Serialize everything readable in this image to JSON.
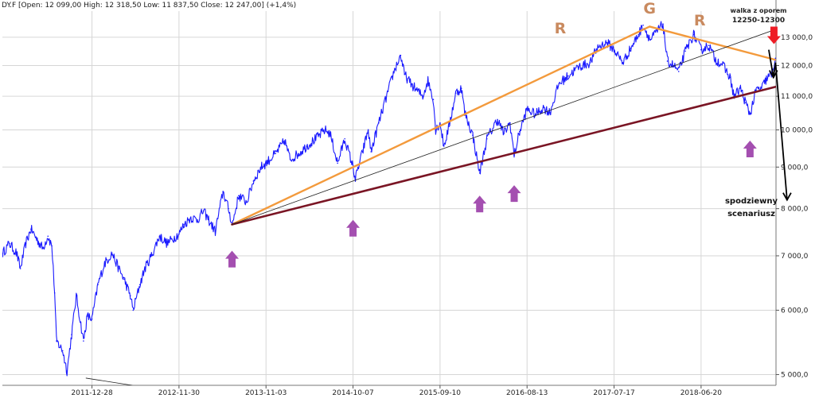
{
  "header": {
    "text": "DY.F [Open: 12 099,00  High: 12 318,50  Low: 11 837,50  Close: 12 247,00] (+1,4%)"
  },
  "chart_data": {
    "type": "line",
    "title": "",
    "xlabel": "",
    "ylabel": "",
    "y_scale": "log",
    "grid": true,
    "series_color": "#1a1aff",
    "x_ticks": [
      "2011-12-28",
      "2012-11-30",
      "2013-11-03",
      "2014-10-07",
      "2015-09-10",
      "2016-08-13",
      "2017-07-17",
      "2018-06-20"
    ],
    "y_ticks": [
      {
        "value": 5000,
        "label": "5 000,0"
      },
      {
        "value": 6000,
        "label": "6 000,0"
      },
      {
        "value": 7000,
        "label": "7 000,0"
      },
      {
        "value": 8000,
        "label": "8 000,0"
      },
      {
        "value": 9000,
        "label": "9 000,0"
      },
      {
        "value": 10000,
        "label": "10 000,0"
      },
      {
        "value": 11000,
        "label": "11 000,0"
      },
      {
        "value": 12000,
        "label": "12 000,0"
      },
      {
        "value": 13000,
        "label": "13 000,0"
      }
    ],
    "ylim": [
      4850,
      14000
    ],
    "xlim": [
      "2011-01-14",
      "2019-04-07"
    ],
    "series": [
      {
        "values": [
          [
            "2011-01-15",
            7050
          ],
          [
            "2011-02-10",
            7250
          ],
          [
            "2011-03-10",
            7050
          ],
          [
            "2011-03-25",
            6750
          ],
          [
            "2011-04-15",
            7250
          ],
          [
            "2011-05-05",
            7550
          ],
          [
            "2011-06-01",
            7300
          ],
          [
            "2011-06-20",
            7150
          ],
          [
            "2011-07-10",
            7400
          ],
          [
            "2011-07-25",
            7200
          ],
          [
            "2011-08-05",
            6300
          ],
          [
            "2011-08-12",
            5500
          ],
          [
            "2011-09-05",
            5350
          ],
          [
            "2011-09-22",
            5050
          ],
          [
            "2011-10-10",
            5600
          ],
          [
            "2011-10-28",
            6250
          ],
          [
            "2011-11-25",
            5500
          ],
          [
            "2011-12-10",
            5900
          ],
          [
            "2011-12-28",
            5850
          ],
          [
            "2012-01-20",
            6450
          ],
          [
            "2012-02-15",
            6850
          ],
          [
            "2012-03-15",
            7050
          ],
          [
            "2012-04-10",
            6750
          ],
          [
            "2012-05-01",
            6550
          ],
          [
            "2012-05-25",
            6250
          ],
          [
            "2012-06-05",
            6000
          ],
          [
            "2012-07-01",
            6450
          ],
          [
            "2012-07-20",
            6750
          ],
          [
            "2012-08-15",
            7000
          ],
          [
            "2012-09-15",
            7400
          ],
          [
            "2012-10-15",
            7250
          ],
          [
            "2012-11-30",
            7450
          ],
          [
            "2012-12-20",
            7650
          ],
          [
            "2013-01-15",
            7800
          ],
          [
            "2013-02-10",
            7750
          ],
          [
            "2013-03-05",
            7950
          ],
          [
            "2013-03-25",
            7750
          ],
          [
            "2013-04-20",
            7500
          ],
          [
            "2013-05-20",
            8400
          ],
          [
            "2013-06-10",
            8000
          ],
          [
            "2013-06-25",
            7650
          ],
          [
            "2013-07-20",
            8300
          ],
          [
            "2013-08-20",
            8150
          ],
          [
            "2013-09-15",
            8650
          ],
          [
            "2013-10-15",
            9000
          ],
          [
            "2013-11-03",
            9100
          ],
          [
            "2013-12-10",
            9350
          ],
          [
            "2014-01-15",
            9700
          ],
          [
            "2014-02-05",
            9200
          ],
          [
            "2014-03-10",
            9350
          ],
          [
            "2014-04-10",
            9550
          ],
          [
            "2014-05-15",
            9750
          ],
          [
            "2014-06-20",
            10000
          ],
          [
            "2014-07-10",
            9900
          ],
          [
            "2014-08-08",
            9100
          ],
          [
            "2014-09-05",
            9750
          ],
          [
            "2014-10-07",
            9000
          ],
          [
            "2014-10-16",
            8700
          ],
          [
            "2014-11-15",
            9450
          ],
          [
            "2014-12-05",
            10000
          ],
          [
            "2014-12-16",
            9400
          ],
          [
            "2015-01-15",
            10200
          ],
          [
            "2015-02-20",
            11150
          ],
          [
            "2015-03-15",
            11800
          ],
          [
            "2015-04-10",
            12350
          ],
          [
            "2015-04-25",
            11700
          ],
          [
            "2015-05-15",
            11450
          ],
          [
            "2015-06-10",
            11200
          ],
          [
            "2015-07-05",
            11000
          ],
          [
            "2015-07-25",
            11500
          ],
          [
            "2015-08-15",
            10900
          ],
          [
            "2015-08-24",
            10000
          ],
          [
            "2015-09-10",
            10200
          ],
          [
            "2015-09-25",
            9550
          ],
          [
            "2015-10-15",
            10100
          ],
          [
            "2015-11-10",
            11100
          ],
          [
            "2015-12-02",
            11250
          ],
          [
            "2015-12-15",
            10500
          ],
          [
            "2016-01-15",
            9850
          ],
          [
            "2016-02-11",
            8850
          ],
          [
            "2016-03-10",
            9750
          ],
          [
            "2016-04-20",
            10300
          ],
          [
            "2016-05-15",
            9900
          ],
          [
            "2016-06-08",
            10200
          ],
          [
            "2016-06-24",
            9300
          ],
          [
            "2016-07-15",
            9950
          ],
          [
            "2016-08-13",
            10600
          ],
          [
            "2016-09-15",
            10450
          ],
          [
            "2016-10-15",
            10650
          ],
          [
            "2016-11-10",
            10500
          ],
          [
            "2016-12-15",
            11400
          ],
          [
            "2017-01-20",
            11650
          ],
          [
            "2017-03-01",
            11950
          ],
          [
            "2017-04-15",
            12100
          ],
          [
            "2017-05-15",
            12650
          ],
          [
            "2017-06-20",
            12800
          ],
          [
            "2017-07-17",
            12550
          ],
          [
            "2017-08-20",
            12100
          ],
          [
            "2017-09-20",
            12600
          ],
          [
            "2017-10-20",
            13100
          ],
          [
            "2017-11-07",
            13450
          ],
          [
            "2017-12-05",
            12900
          ],
          [
            "2018-01-23",
            13500
          ],
          [
            "2018-02-09",
            12150
          ],
          [
            "2018-03-05",
            12000
          ],
          [
            "2018-03-25",
            11800
          ],
          [
            "2018-04-20",
            12500
          ],
          [
            "2018-05-22",
            13100
          ],
          [
            "2018-06-20",
            12550
          ],
          [
            "2018-07-20",
            12700
          ],
          [
            "2018-08-15",
            12200
          ],
          [
            "2018-09-10",
            12050
          ],
          [
            "2018-10-10",
            11600
          ],
          [
            "2018-10-26",
            11000
          ],
          [
            "2018-11-20",
            11250
          ],
          [
            "2018-12-10",
            10800
          ],
          [
            "2018-12-27",
            10450
          ],
          [
            "2019-01-20",
            11200
          ],
          [
            "2019-02-10",
            11250
          ],
          [
            "2019-03-01",
            11550
          ],
          [
            "2019-03-20",
            11700
          ],
          [
            "2019-04-05",
            12250
          ]
        ]
      }
    ],
    "trendlines": [
      {
        "color": "#f39a3c",
        "points": [
          [
            "2013-06-24",
            7650
          ],
          [
            "2017-12-02",
            13400
          ]
        ]
      },
      {
        "color": "#f39a3c",
        "points": [
          [
            "2017-12-02",
            13400
          ],
          [
            "2019-04-03",
            12200
          ]
        ]
      },
      {
        "color": "#7a1524",
        "points": [
          [
            "2013-06-24",
            7650
          ],
          [
            "2019-04-07",
            11300
          ]
        ]
      },
      {
        "color": "#222222",
        "points": [
          [
            "2013-06-24",
            7650
          ],
          [
            "2019-04-07",
            13300
          ]
        ]
      },
      {
        "color": "#222222",
        "points": [
          [
            "2011-12-05",
            4950
          ],
          [
            "2012-06-01",
            4850
          ]
        ]
      }
    ],
    "support_arrows": [
      {
        "date": "2013-06-24",
        "value": 7100
      },
      {
        "date": "2014-10-07",
        "value": 7750
      },
      {
        "date": "2016-02-11",
        "value": 8300
      },
      {
        "date": "2016-06-24",
        "value": 8550
      },
      {
        "date": "2018-12-27",
        "value": 9700
      }
    ],
    "resistance_arrow": {
      "date": "2019-03-30",
      "value": 12750
    },
    "forecast_path": [
      [
        "2019-03-10",
        12550
      ],
      [
        "2019-03-28",
        11600
      ],
      [
        "2019-04-05",
        12100
      ],
      [
        "2019-05-20",
        8200
      ]
    ],
    "forecast_arrow_dates": [
      [
        "2019-03-28",
        11600
      ],
      [
        "2019-05-20",
        8200
      ]
    ],
    "head_shoulders_labels": [
      {
        "text": "R",
        "date": "2016-12-20",
        "value": 13150
      },
      {
        "text": "G",
        "date": "2017-12-02",
        "value": 13900
      },
      {
        "text": "R",
        "date": "2018-06-15",
        "value": 13450
      }
    ],
    "annotations": {
      "resistance_line1": "walka z oporem",
      "resistance_line2": "12250-12300",
      "scenario_line1": "spodziewny",
      "scenario_line2": "scenariusz"
    },
    "annotation_colors": {
      "label_brown": "#c98a5f",
      "arrow_purple": "#a44fb0",
      "arrow_red": "#ee1c25",
      "forecast_black": "#000000"
    }
  }
}
